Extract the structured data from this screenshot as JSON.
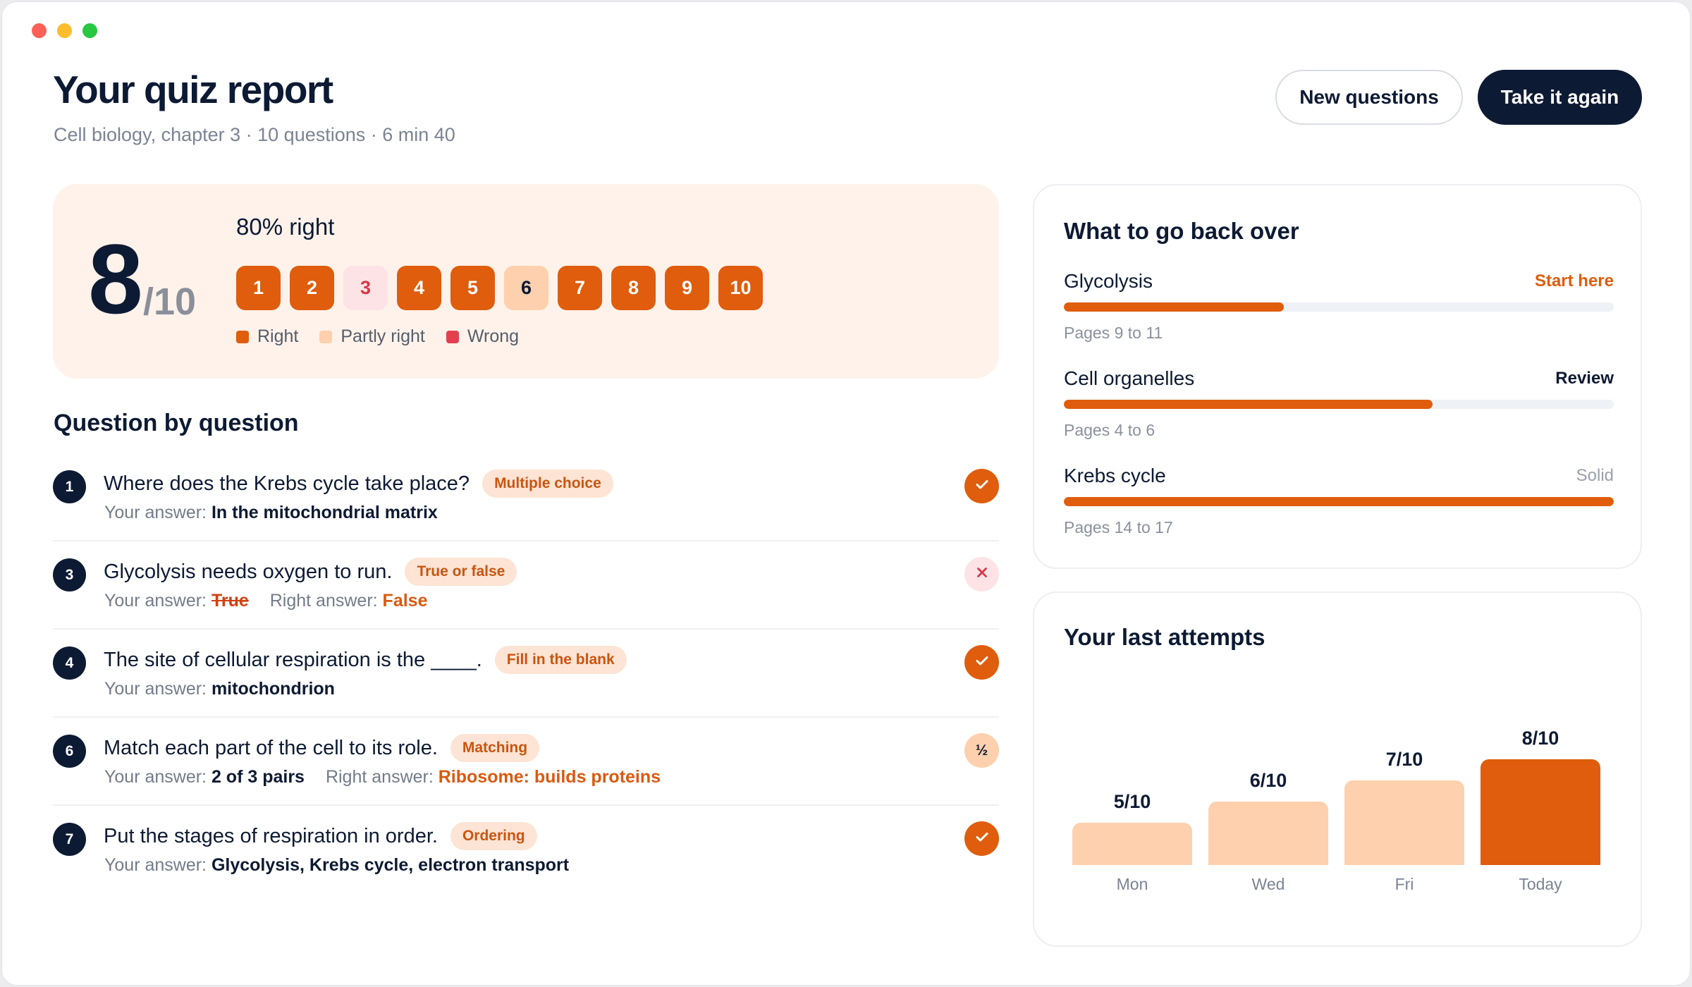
{
  "header": {
    "title": "Your quiz report",
    "subtitle": "Cell biology, chapter 3 · 10 questions · 6 min 40",
    "new_questions_label": "New questions",
    "take_again_label": "Take it again"
  },
  "score": {
    "value": "8",
    "denominator": "/10",
    "percent_label": "80% right",
    "questions": [
      {
        "n": "1",
        "result": "right"
      },
      {
        "n": "2",
        "result": "right"
      },
      {
        "n": "3",
        "result": "wrong"
      },
      {
        "n": "4",
        "result": "right"
      },
      {
        "n": "5",
        "result": "right"
      },
      {
        "n": "6",
        "result": "partial"
      },
      {
        "n": "7",
        "result": "right"
      },
      {
        "n": "8",
        "result": "right"
      },
      {
        "n": "9",
        "result": "right"
      },
      {
        "n": "10",
        "result": "right"
      }
    ],
    "legend": {
      "right": "Right",
      "partial": "Partly right",
      "wrong": "Wrong"
    }
  },
  "questions_section": {
    "title": "Question by question",
    "your_answer_label": "Your answer:",
    "right_answer_label": "Right answer:",
    "items": [
      {
        "n": "1",
        "text": "Where does the Krebs cycle take place?",
        "type": "Multiple choice",
        "answer": "In the mitochondrial matrix",
        "status": "correct",
        "status_icon": "check-icon"
      },
      {
        "n": "3",
        "text": "Glycolysis needs oxygen to run.",
        "type": "True or false",
        "answer": "True",
        "right_answer": "False",
        "status": "wrong",
        "status_icon": "close-icon"
      },
      {
        "n": "4",
        "text": "The site of cellular respiration is the ____.",
        "type": "Fill in the blank",
        "answer": "mitochondrion",
        "status": "correct",
        "status_icon": "check-icon"
      },
      {
        "n": "6",
        "text": "Match each part of the cell to its role.",
        "type": "Matching",
        "answer": "2 of 3 pairs",
        "right_answer": "Ribosome: builds proteins",
        "status": "partial",
        "status_text": "½"
      },
      {
        "n": "7",
        "text": "Put the stages of respiration in order.",
        "type": "Ordering",
        "answer": "Glycolysis, Krebs cycle, electron transport",
        "status": "correct",
        "status_icon": "check-icon"
      }
    ]
  },
  "review": {
    "title": "What to go back over",
    "topics": [
      {
        "name": "Glycolysis",
        "status": "Start here",
        "progress": 0.4,
        "pages": "Pages 9 to 11"
      },
      {
        "name": "Cell organelles",
        "status": "Review",
        "progress": 0.67,
        "pages": "Pages 4 to 6"
      },
      {
        "name": "Krebs cycle",
        "status": "Solid",
        "progress": 1.0,
        "pages": "Pages 14 to 17"
      }
    ]
  },
  "attempts": {
    "title": "Your last attempts",
    "chart_data": {
      "type": "bar",
      "categories": [
        "Mon",
        "Wed",
        "Fri",
        "Today"
      ],
      "values": [
        5,
        6,
        7,
        8
      ],
      "value_labels": [
        "5/10",
        "6/10",
        "7/10",
        "8/10"
      ],
      "ylim": [
        0,
        10
      ],
      "highlight": "Today",
      "colors": {
        "past": "#fed0ad",
        "current": "#df5d0c"
      }
    }
  },
  "colors": {
    "accent": "#df5d0c",
    "dark": "#0d1a33",
    "wrong": "#e2404f",
    "partial": "#fed0ad"
  }
}
